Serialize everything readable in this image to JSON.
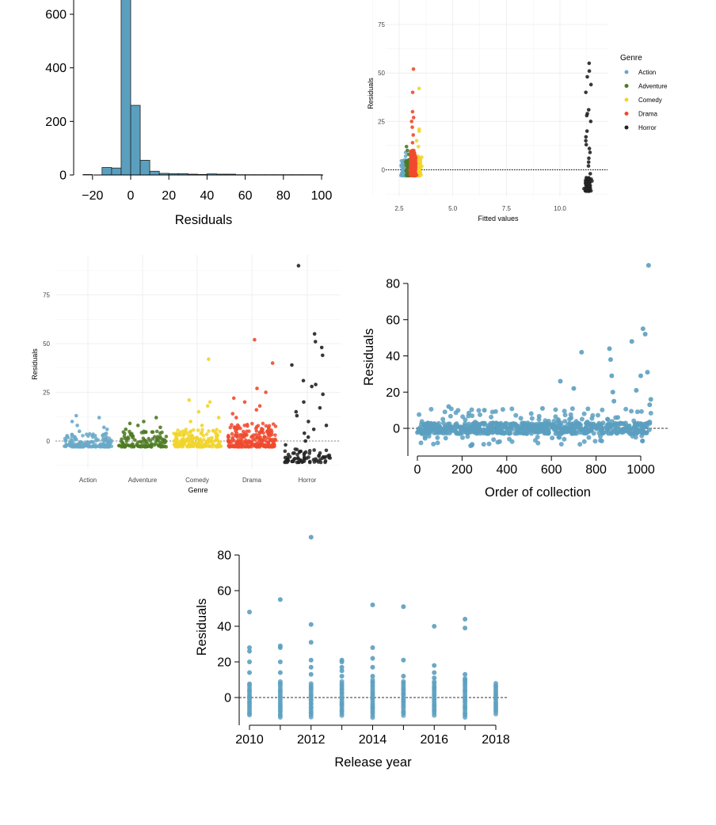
{
  "colors": {
    "blue": "#5b9fbf",
    "Action": "#6aa9c8",
    "Adventure": "#4d7a22",
    "Comedy": "#f1d52c",
    "Drama": "#f04a2e",
    "Horror": "#222222",
    "grid": "#ebebeb"
  },
  "chart_data": [
    {
      "id": "hist",
      "type": "bar",
      "xlabel": "Residuals",
      "ylabel": "",
      "xlim": [
        -30,
        105
      ],
      "ylim": [
        0,
        650
      ],
      "x_ticks": [
        "−20",
        "0",
        "20",
        "40",
        "60",
        "80",
        "100"
      ],
      "x_tick_values": [
        -20,
        0,
        20,
        40,
        60,
        80,
        100
      ],
      "y_ticks": [
        "0",
        "200",
        "400",
        "600"
      ],
      "y_tick_values": [
        0,
        200,
        400,
        600
      ],
      "bin_width": 5,
      "bins": [
        {
          "x0": -25,
          "count": 2
        },
        {
          "x0": -15,
          "count": 28
        },
        {
          "x0": -10,
          "count": 26
        },
        {
          "x0": -5,
          "count": 680
        },
        {
          "x0": 0,
          "count": 260
        },
        {
          "x0": 5,
          "count": 55
        },
        {
          "x0": 10,
          "count": 14
        },
        {
          "x0": 15,
          "count": 6
        },
        {
          "x0": 20,
          "count": 5
        },
        {
          "x0": 25,
          "count": 5
        },
        {
          "x0": 30,
          "count": 3
        },
        {
          "x0": 35,
          "count": 2
        },
        {
          "x0": 40,
          "count": 4
        },
        {
          "x0": 45,
          "count": 3
        },
        {
          "x0": 50,
          "count": 3
        },
        {
          "x0": 55,
          "count": 1
        },
        {
          "x0": 60,
          "count": 1
        },
        {
          "x0": 65,
          "count": 1
        },
        {
          "x0": 70,
          "count": 1
        },
        {
          "x0": 75,
          "count": 1
        },
        {
          "x0": 80,
          "count": 1
        },
        {
          "x0": 85,
          "count": 1
        },
        {
          "x0": 90,
          "count": 1
        },
        {
          "x0": 95,
          "count": 1
        }
      ]
    },
    {
      "id": "fitted",
      "type": "scatter",
      "xlabel": "Fitted values",
      "ylabel": "Residuals",
      "xlim": [
        1.6,
        11.8
      ],
      "ylim": [
        -14,
        82
      ],
      "x_ticks": [
        "2.5",
        "5.0",
        "7.5",
        "10.0"
      ],
      "x_tick_values": [
        2.5,
        5.0,
        7.5,
        10.0
      ],
      "y_ticks": [
        "0",
        "25",
        "50",
        "75"
      ],
      "y_tick_values": [
        0,
        25,
        50,
        75
      ],
      "reference_line": 0,
      "legend": {
        "title": "Genre",
        "position": "right",
        "items": [
          "Action",
          "Adventure",
          "Comedy",
          "Drama",
          "Horror"
        ]
      },
      "groups": [
        {
          "name": "Action",
          "x_center": 2.75,
          "x_spread": 0.14,
          "n": 150,
          "core": [
            -3,
            5
          ],
          "outliers": [
            7,
            9
          ]
        },
        {
          "name": "Adventure",
          "x_center": 2.95,
          "x_spread": 0.12,
          "n": 110,
          "core": [
            -3,
            6
          ],
          "outliers": [
            8,
            10,
            12
          ]
        },
        {
          "name": "Comedy",
          "x_center": 3.4,
          "x_spread": 0.12,
          "n": 170,
          "core": [
            -3,
            7
          ],
          "outliers": [
            12,
            15,
            20,
            21,
            42
          ]
        },
        {
          "name": "Drama",
          "x_center": 3.15,
          "x_spread": 0.12,
          "n": 230,
          "core": [
            -3,
            10
          ],
          "outliers": [
            14,
            18,
            22,
            25,
            27,
            30,
            40,
            52
          ]
        },
        {
          "name": "Horror",
          "x_center": 11.3,
          "x_spread": 0.15,
          "n": 70,
          "core": [
            -11,
            -4
          ],
          "outliers": [
            -2,
            2,
            4,
            6,
            9,
            11,
            13,
            15,
            17,
            20,
            25,
            28,
            29,
            31,
            40,
            44,
            48,
            51,
            55
          ]
        }
      ]
    },
    {
      "id": "genre",
      "type": "scatter",
      "xlabel": "Genre",
      "ylabel": "Residuals",
      "categories": [
        "Action",
        "Adventure",
        "Comedy",
        "Drama",
        "Horror"
      ],
      "ylim": [
        -12,
        92
      ],
      "y_ticks": [
        "0",
        "25",
        "50",
        "75"
      ],
      "y_tick_values": [
        0,
        25,
        50,
        75
      ],
      "reference_line": 0,
      "groups": [
        {
          "name": "Action",
          "n": 150,
          "core": [
            -3,
            4
          ],
          "outliers": [
            5,
            6,
            7,
            8,
            10,
            12,
            13
          ]
        },
        {
          "name": "Adventure",
          "n": 110,
          "core": [
            -3,
            5
          ],
          "outliers": [
            6,
            7,
            8,
            9,
            10,
            12
          ]
        },
        {
          "name": "Comedy",
          "n": 170,
          "core": [
            -3,
            6
          ],
          "outliers": [
            8,
            10,
            12,
            15,
            18,
            20,
            21,
            42
          ]
        },
        {
          "name": "Drama",
          "n": 230,
          "core": [
            -3,
            9
          ],
          "outliers": [
            12,
            14,
            16,
            18,
            20,
            22,
            25,
            27,
            40,
            52
          ]
        },
        {
          "name": "Horror",
          "n": 70,
          "core": [
            -11,
            -4
          ],
          "outliers": [
            -2,
            0,
            2,
            4,
            6,
            8,
            10,
            13,
            15,
            17,
            20,
            24,
            28,
            29,
            31,
            39,
            44,
            48,
            51,
            55,
            90
          ]
        }
      ]
    },
    {
      "id": "order",
      "type": "scatter",
      "xlabel": "Order of collection",
      "ylabel": "Residuals",
      "xlim": [
        -40,
        1065
      ],
      "ylim": [
        -15,
        88
      ],
      "x_ticks": [
        "0",
        "200",
        "400",
        "600",
        "800",
        "1000"
      ],
      "x_tick_values": [
        0,
        200,
        400,
        600,
        800,
        1000
      ],
      "y_ticks": [
        "0",
        "20",
        "40",
        "60",
        "80"
      ],
      "y_tick_values": [
        0,
        20,
        40,
        60,
        80
      ],
      "reference_line": 0,
      "n": 730,
      "x_range": [
        0,
        1050
      ],
      "core": [
        -3,
        3
      ],
      "notable": [
        {
          "x": 140,
          "y": 12
        },
        {
          "x": 300,
          "y": 10
        },
        {
          "x": 560,
          "y": 11
        },
        {
          "x": 640,
          "y": 26
        },
        {
          "x": 700,
          "y": 22
        },
        {
          "x": 735,
          "y": 42
        },
        {
          "x": 860,
          "y": 44
        },
        {
          "x": 865,
          "y": 38
        },
        {
          "x": 870,
          "y": 29
        },
        {
          "x": 875,
          "y": 20
        },
        {
          "x": 880,
          "y": 15
        },
        {
          "x": 960,
          "y": 48
        },
        {
          "x": 980,
          "y": 21
        },
        {
          "x": 1000,
          "y": 29
        },
        {
          "x": 1010,
          "y": 55
        },
        {
          "x": 1020,
          "y": 52
        },
        {
          "x": 1030,
          "y": 31
        },
        {
          "x": 1035,
          "y": 90
        },
        {
          "x": 1040,
          "y": 13
        },
        {
          "x": 1045,
          "y": 16
        }
      ]
    },
    {
      "id": "year",
      "type": "scatter",
      "xlabel": "Release year",
      "ylabel": "Residuals",
      "xlim": [
        2009.6,
        2018.4
      ],
      "ylim": [
        -15,
        92
      ],
      "x_ticks": [
        "2010",
        "2012",
        "2014",
        "2016",
        "2018"
      ],
      "x_tick_values": [
        2010,
        2012,
        2014,
        2016,
        2018
      ],
      "y_ticks": [
        "0",
        "20",
        "40",
        "60",
        "80"
      ],
      "y_tick_values": [
        0,
        20,
        40,
        60,
        80
      ],
      "reference_line": 0,
      "years": [
        {
          "year": 2010,
          "low": -10,
          "high": 8,
          "outliers": [
            14,
            20,
            26,
            28,
            48
          ]
        },
        {
          "year": 2011,
          "low": -11,
          "high": 9,
          "outliers": [
            14,
            20,
            28,
            29,
            55
          ]
        },
        {
          "year": 2012,
          "low": -11,
          "high": 8,
          "outliers": [
            13,
            17,
            21,
            31,
            41,
            90
          ]
        },
        {
          "year": 2013,
          "low": -10,
          "high": 9,
          "outliers": [
            12,
            15,
            17,
            20,
            21
          ]
        },
        {
          "year": 2014,
          "low": -11,
          "high": 10,
          "outliers": [
            12,
            17,
            22,
            28,
            52
          ]
        },
        {
          "year": 2015,
          "low": -10,
          "high": 9,
          "outliers": [
            12,
            21,
            51
          ]
        },
        {
          "year": 2016,
          "low": -10,
          "high": 9,
          "outliers": [
            11,
            14,
            18,
            40
          ]
        },
        {
          "year": 2017,
          "low": -11,
          "high": 11,
          "outliers": [
            13,
            39,
            44
          ]
        },
        {
          "year": 2018,
          "low": -9,
          "high": 8,
          "outliers": []
        }
      ]
    }
  ]
}
